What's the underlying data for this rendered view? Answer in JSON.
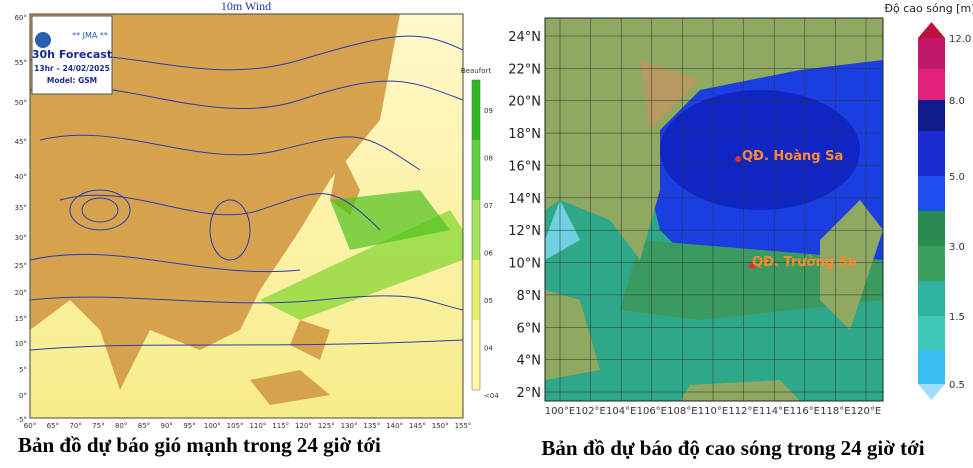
{
  "left_map": {
    "title": "10m Wind",
    "agency": "** JMA **",
    "forecast": "30h Forecast",
    "time": "13hr – 24/02/2025",
    "model": "Model: GSM",
    "legend_title": "Beaufort",
    "legend_labels": [
      "09",
      "08",
      "07",
      "06",
      "05",
      "04",
      "<04"
    ],
    "lat_labels": [
      "60°",
      "55°",
      "50°",
      "45°",
      "40°",
      "35°",
      "30°",
      "25°",
      "20°",
      "15°",
      "10°",
      "5°",
      "0°",
      "-5°"
    ],
    "lon_labels": [
      "60°",
      "65°",
      "70°",
      "75°",
      "80°",
      "85°",
      "90°",
      "95°",
      "100°",
      "105°",
      "110°",
      "115°",
      "120°",
      "125°",
      "130°",
      "135°",
      "140°",
      "145°",
      "150°",
      "155°"
    ],
    "caption": "Bản đồ dự báo gió mạnh trong 24 giờ tới"
  },
  "right_map": {
    "legend_title": "Độ cao sóng [m]",
    "legend_labels": [
      "12.0",
      "8.0",
      "5.0",
      "3.0",
      "1.5",
      "0.5"
    ],
    "lat_labels": [
      "24°N",
      "22°N",
      "20°N",
      "18°N",
      "16°N",
      "14°N",
      "12°N",
      "10°N",
      "8°N",
      "6°N",
      "4°N",
      "2°N"
    ],
    "lon_labels": [
      "100°E",
      "102°E",
      "104°E",
      "106°E",
      "108°E",
      "110°E",
      "112°E",
      "114°E",
      "116°E",
      "118°E",
      "120°E"
    ],
    "places": [
      "QĐ. Hoàng Sa",
      "QĐ. Trường Sa"
    ],
    "caption": "Bản đồ dự báo độ cao sóng trong 24 giờ tới"
  }
}
